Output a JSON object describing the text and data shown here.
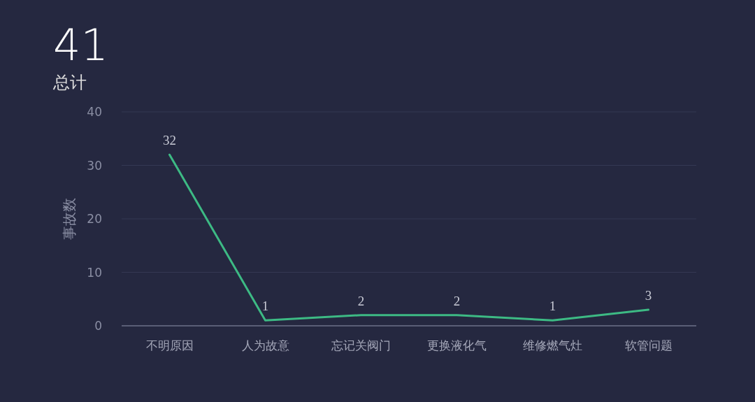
{
  "chart_data": {
    "type": "line",
    "title": "41",
    "subtitle": "总计",
    "ylabel": "事故数",
    "categories": [
      "不明原因",
      "人为故意",
      "忘记关阀门",
      "更换液化气",
      "维修燃气灶",
      "软管问题"
    ],
    "values": [
      32,
      1,
      2,
      2,
      1,
      3
    ],
    "color": "#3dba84",
    "ylim": [
      0,
      40
    ],
    "yticks": [
      0,
      10,
      20,
      30,
      40
    ],
    "grid": "y",
    "data_labels": true
  }
}
